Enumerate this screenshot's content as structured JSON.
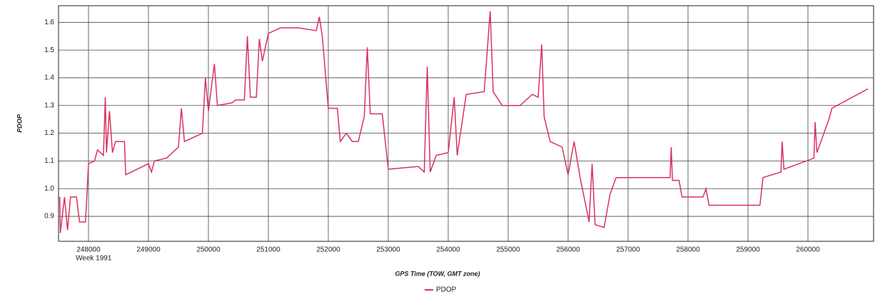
{
  "chart_data": {
    "type": "line",
    "x_label": "GPS Time (TOW, GMT zone)",
    "y_label": "PDOP",
    "x_sublabel": "Week 1991",
    "x": [
      247520,
      247530,
      247600,
      247650,
      247700,
      247800,
      247850,
      247950,
      248000,
      248100,
      248150,
      248250,
      248280,
      248300,
      248350,
      248400,
      248450,
      248600,
      248620,
      249000,
      249050,
      249100,
      249300,
      249500,
      249550,
      249600,
      249900,
      249950,
      250000,
      250100,
      250150,
      250400,
      250450,
      250600,
      250650,
      250700,
      250800,
      250850,
      250900,
      251000,
      251200,
      251500,
      251800,
      251850,
      251900,
      252000,
      252150,
      252200,
      252300,
      252400,
      252500,
      252600,
      252650,
      252700,
      252900,
      252950,
      253000,
      253500,
      253600,
      253650,
      253700,
      253800,
      254000,
      254100,
      254150,
      254300,
      254600,
      254700,
      254750,
      254900,
      255200,
      255400,
      255500,
      255560,
      255600,
      255700,
      255900,
      256000,
      256100,
      256200,
      256350,
      256400,
      256450,
      256600,
      256700,
      256800,
      257700,
      257720,
      257740,
      257850,
      257900,
      258250,
      258300,
      258350,
      259200,
      259250,
      259550,
      259570,
      259600,
      260100,
      260120,
      260150,
      260350,
      260400,
      261000
    ],
    "series": [
      {
        "name": "PDOP",
        "color": "#d9325e",
        "values": [
          0.97,
          0.84,
          0.97,
          0.85,
          0.97,
          0.97,
          0.88,
          0.88,
          1.09,
          1.1,
          1.14,
          1.12,
          1.33,
          1.13,
          1.28,
          1.13,
          1.17,
          1.17,
          1.05,
          1.09,
          1.06,
          1.1,
          1.11,
          1.15,
          1.29,
          1.17,
          1.2,
          1.4,
          1.28,
          1.45,
          1.3,
          1.31,
          1.32,
          1.32,
          1.55,
          1.33,
          1.33,
          1.54,
          1.46,
          1.56,
          1.58,
          1.58,
          1.57,
          1.62,
          1.55,
          1.29,
          1.29,
          1.17,
          1.2,
          1.17,
          1.17,
          1.26,
          1.51,
          1.27,
          1.27,
          1.17,
          1.07,
          1.08,
          1.06,
          1.44,
          1.06,
          1.12,
          1.13,
          1.33,
          1.12,
          1.34,
          1.35,
          1.64,
          1.35,
          1.3,
          1.3,
          1.34,
          1.33,
          1.52,
          1.26,
          1.17,
          1.15,
          1.05,
          1.17,
          1.04,
          0.88,
          1.09,
          0.87,
          0.86,
          0.98,
          1.04,
          1.04,
          1.15,
          1.03,
          1.03,
          0.97,
          0.97,
          1.0,
          0.94,
          0.94,
          1.04,
          1.06,
          1.17,
          1.07,
          1.11,
          1.24,
          1.13,
          1.25,
          1.29,
          1.36
        ]
      }
    ],
    "xlim": [
      247500,
      261095
    ],
    "xticks": [
      248000,
      249000,
      250000,
      251000,
      252000,
      253000,
      254000,
      255000,
      256000,
      257000,
      258000,
      259000,
      260000
    ],
    "ylim": [
      0.81,
      1.66
    ],
    "yticks": [
      0.9,
      {
        "value": 1,
        "label": "1.0"
      },
      1.1,
      1.2,
      1.3,
      1.4,
      1.5,
      1.6
    ],
    "grid": true
  }
}
